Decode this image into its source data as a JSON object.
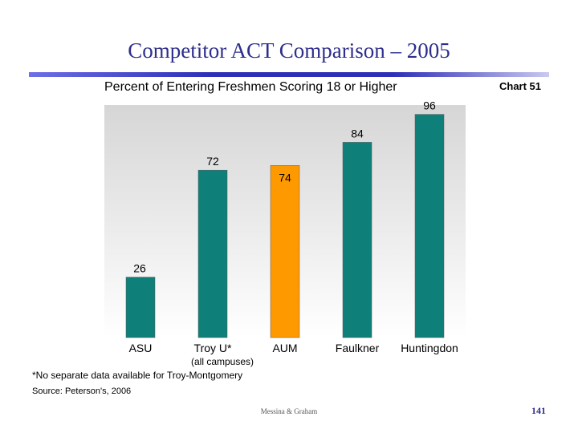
{
  "slide": {
    "title": "Competitor ACT Comparison – 2005",
    "chart_number": "Chart 51",
    "footnote": "*No separate data available for Troy-Montgomery",
    "source": "Source:  Peterson's, 2006",
    "authors": "Messina & Graham",
    "page_number": "141"
  },
  "chart_data": {
    "type": "bar",
    "title": "Percent of Entering Freshmen Scoring 18 or Higher",
    "categories": [
      "ASU",
      "Troy U*",
      "AUM",
      "Faulkner",
      "Huntingdon"
    ],
    "category_sublabels": [
      "",
      "(all campuses)",
      "",
      "",
      ""
    ],
    "values": [
      26,
      72,
      74,
      84,
      96
    ],
    "ylim": [
      0,
      100
    ],
    "grid": false,
    "legend": "none",
    "colors": {
      "default": "#0f7f79",
      "highlight": "#ff9900",
      "highlight_category": "AUM",
      "plot_bg_top": "#d6d6d6",
      "plot_bg_bottom": "#ffffff"
    }
  }
}
